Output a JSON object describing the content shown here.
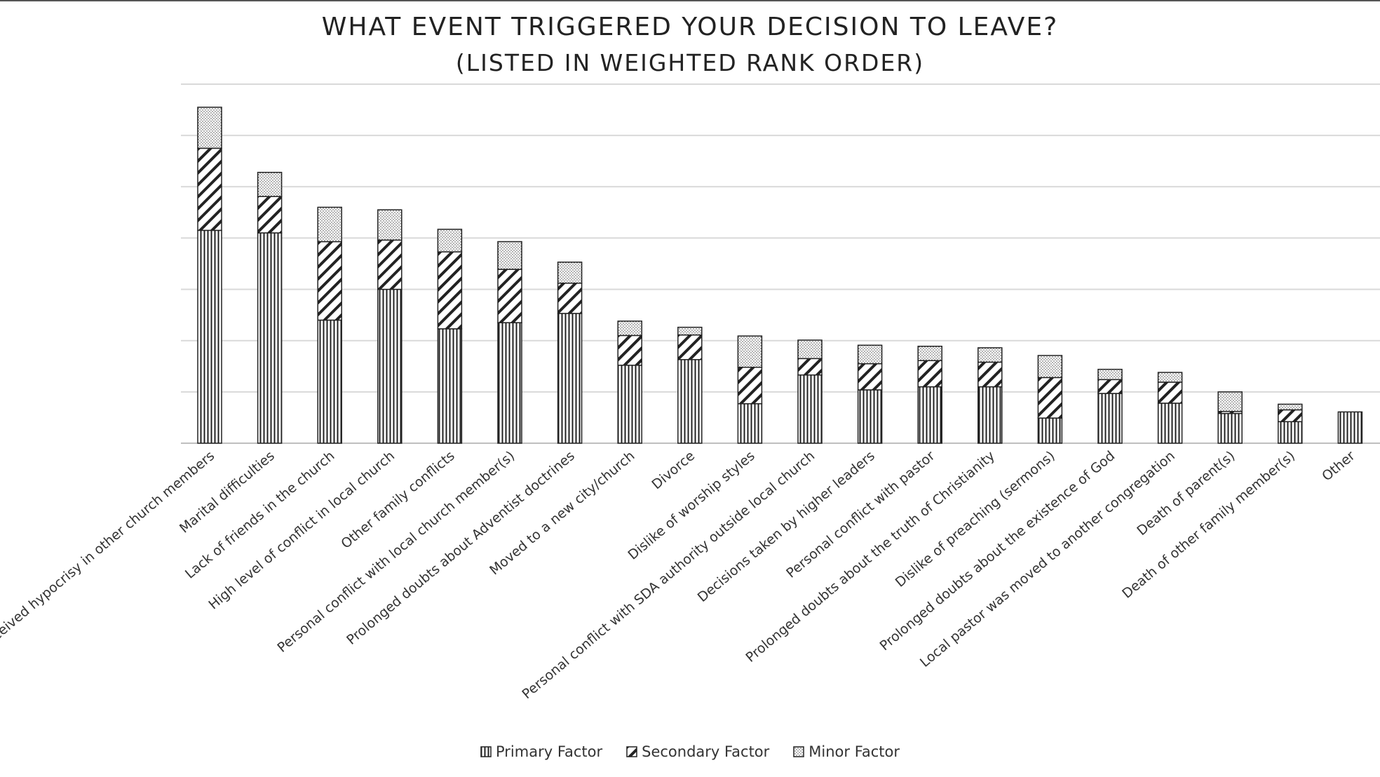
{
  "chart_data": {
    "type": "bar",
    "stacked": true,
    "title": "WHAT EVENT TRIGGERED YOUR DECISION TO LEAVE?",
    "subtitle": "(LISTED IN WEIGHTED RANK ORDER)",
    "categories": [
      "Perceived hypocrisy in other church members",
      "Marital difficulties",
      "Lack of friends in the church",
      "High level of conflict in local church",
      "Other family conflicts",
      "Personal conflict with local church member(s)",
      "Prolonged doubts about Adventist doctrines",
      "Moved to a new city/church",
      "Divorce",
      "Dislike of worship styles",
      "Personal conflict with SDA authority outside local church",
      "Decisions taken by higher leaders",
      "Personal conflict with pastor",
      "Prolonged doubts about the truth of Christianity",
      "Dislike of preaching (sermons)",
      "Prolonged doubts about the existence of God",
      "Local pastor was moved to another congregation",
      "Death of parent(s)",
      "Death of other family member(s)",
      "Other"
    ],
    "series": [
      {
        "name": "Primary Factor",
        "pattern": "vertical-lines",
        "values": [
          41.5,
          41,
          24,
          30,
          22.3,
          23.5,
          25.3,
          15.2,
          16.3,
          7.7,
          13.3,
          10.4,
          11,
          11,
          4.9,
          9.7,
          7.8,
          5.8,
          4.2,
          6.1
        ]
      },
      {
        "name": "Secondary Factor",
        "pattern": "diagonal-stripes",
        "values": [
          16,
          7.1,
          15.3,
          9.6,
          15,
          10.4,
          5.9,
          5.8,
          4.8,
          7.1,
          3.2,
          5.1,
          5.1,
          4.8,
          7.9,
          2.7,
          4.1,
          0.4,
          2.3,
          0
        ]
      },
      {
        "name": "Minor Factor",
        "pattern": "dots",
        "values": [
          8,
          4.7,
          6.7,
          5.9,
          4.4,
          5.4,
          4.1,
          2.8,
          1.5,
          6.1,
          3.6,
          3.6,
          2.8,
          2.8,
          4.3,
          2,
          1.9,
          3.8,
          1.1,
          0
        ]
      }
    ],
    "ylim": [
      0,
      70
    ],
    "ytick_step": 10,
    "y_tick_labels_shown": false,
    "xlabel": "",
    "ylabel": "",
    "grid": "horizontal",
    "legend_position": "bottom",
    "colors": {
      "bar_fill": "#ffffff",
      "bar_pattern": "#222222",
      "gridline": "#d9d9d9",
      "axis": "#bfbfbf"
    }
  }
}
